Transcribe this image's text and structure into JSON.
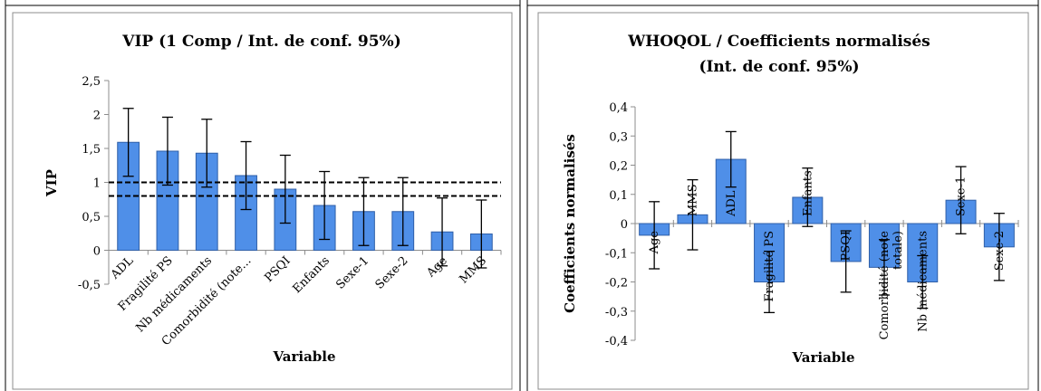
{
  "chart_data": [
    {
      "type": "bar",
      "title": "VIP (1 Comp / Int. de conf. 95%)",
      "xlabel": "Variable",
      "ylabel": "VIP",
      "ylim": [
        -0.5,
        2.5
      ],
      "yticks": [
        "-0,5",
        "0",
        "0,5",
        "1",
        "1,5",
        "2",
        "2,5"
      ],
      "categories": [
        "ADL",
        "Fragilité PS",
        "Nb médicaments",
        "Comorbidité (note...",
        "PSQI",
        "Enfants",
        "Sexe-1",
        "Sexe-2",
        "Age",
        "MMS"
      ],
      "values": [
        1.59,
        1.46,
        1.43,
        1.1,
        0.9,
        0.66,
        0.57,
        0.57,
        0.27,
        0.24
      ],
      "error": [
        0.5,
        0.5,
        0.5,
        0.5,
        0.5,
        0.5,
        0.5,
        0.5,
        0.5,
        0.5
      ],
      "reference_lines": [
        1.0,
        0.8
      ],
      "bar_color": "#4F8FE8",
      "grid": false
    },
    {
      "type": "bar",
      "title": "WHOQOL / Coefficients normalisés (Int. de conf. 95%)",
      "title_lines": [
        "WHOQOL / Coefficients normalisés",
        "(Int. de conf. 95%)"
      ],
      "xlabel": "Variable",
      "ylabel": "Coefficients normalisés",
      "ylim": [
        -0.4,
        0.4
      ],
      "yticks": [
        "-0,4",
        "-0,3",
        "-0,2",
        "-0,1",
        "0",
        "0,1",
        "0,2",
        "0,3",
        "0,4"
      ],
      "categories": [
        "Age",
        "MMS",
        "ADL",
        "Fragilité PS",
        "Enfants",
        "PSQI",
        "Comorbidité (note totale)",
        "Nb médicaments",
        "Sexe-1",
        "Sexe-2"
      ],
      "category_lines": [
        [
          "Age"
        ],
        [
          "MMS"
        ],
        [
          "ADL"
        ],
        [
          "Fragilité PS"
        ],
        [
          "Enfants"
        ],
        [
          "PSQI"
        ],
        [
          "Comorbidité (note",
          "totale)"
        ],
        [
          "Nb médicaments"
        ],
        [
          "Sexe-1"
        ],
        [
          "Sexe-2"
        ]
      ],
      "values": [
        -0.04,
        0.03,
        0.22,
        -0.2,
        0.09,
        -0.13,
        -0.15,
        -0.2,
        0.08,
        -0.08
      ],
      "error": [
        0.115,
        0.12,
        0.095,
        0.105,
        0.1,
        0.105,
        0.095,
        0.09,
        0.115,
        0.115
      ],
      "bar_color": "#4F8FE8",
      "grid": false
    }
  ]
}
